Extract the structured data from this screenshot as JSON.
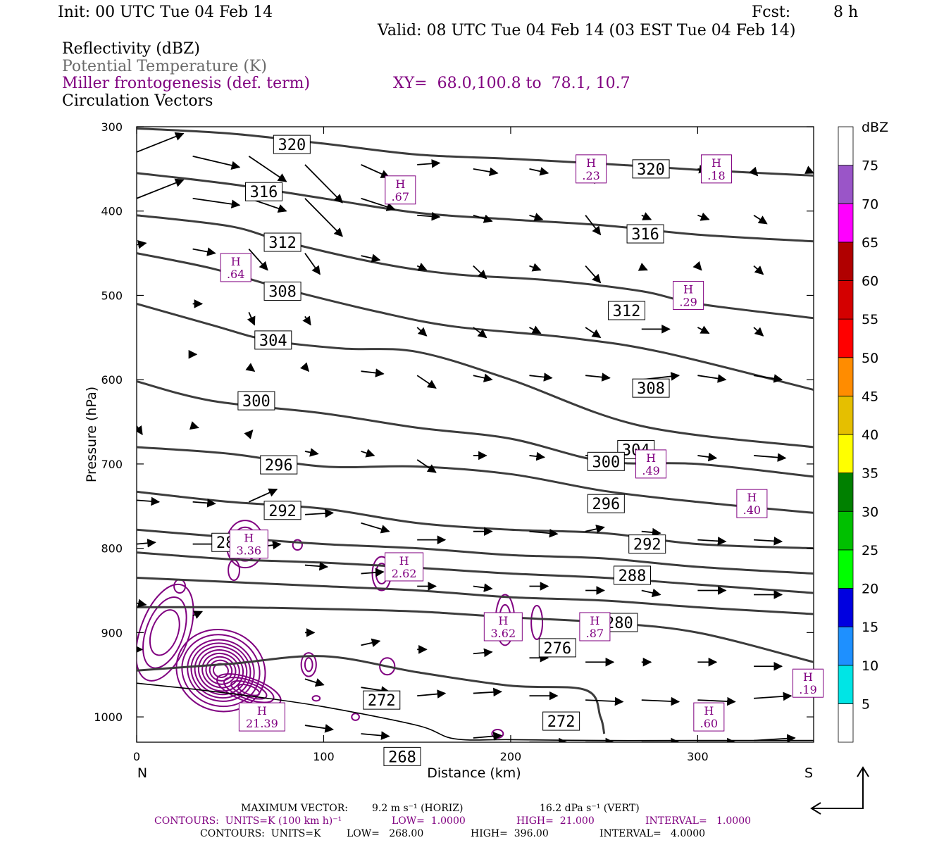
{
  "header": {
    "init": "Init: 00 UTC Tue 04 Feb 14",
    "fcst_label": "Fcst:",
    "fcst_value": "8 h",
    "valid": "Valid: 08 UTC Tue 04 Feb 14 (03 EST Tue 04 Feb 14)",
    "field1": "Reflectivity (dBZ)",
    "field2": "Potential Temperature (K)",
    "field3": "Miller frontogenesis (def. term)",
    "xy": "XY=  68.0,100.8 to  78.1, 10.7",
    "field4": "Circulation Vectors"
  },
  "footer": {
    "max_vector_label": "MAXIMUM VECTOR:",
    "max_horiz": "9.2 m s⁻¹ (HORIZ)",
    "max_vert": "16.2 dPa s⁻¹ (VERT)",
    "contours1_units": "CONTOURS:  UNITS=K (100 km h)⁻¹",
    "contours1_low": "LOW=  1.0000",
    "contours1_high": "HIGH=  21.000",
    "contours1_interval": "INTERVAL=   1.0000",
    "contours2_units": "CONTOURS:  UNITS=K",
    "contours2_low": "LOW=   268.00",
    "contours2_high": "HIGH=  396.00",
    "contours2_interval": "INTERVAL=   4.0000"
  },
  "colors": {
    "theta": "#3c3c3c",
    "frontogenesis": "#800080",
    "vector": "#000000"
  },
  "chart_data": {
    "type": "cross-section",
    "xlabel": "Distance (km)",
    "ylabel": "Pressure (hPa)",
    "xlim": [
      0,
      362
    ],
    "ylim": [
      300,
      1030
    ],
    "x_ticks": [
      0,
      100,
      200,
      300
    ],
    "y_ticks": [
      300,
      400,
      500,
      600,
      700,
      800,
      900,
      1000
    ],
    "left_end_label": "N",
    "right_end_label": "S",
    "colorbar": {
      "title": "dBZ",
      "levels": [
        5,
        10,
        15,
        20,
        25,
        30,
        35,
        40,
        45,
        50,
        55,
        60,
        65,
        70,
        75
      ],
      "colors": [
        "#ffffff",
        "#00e5e5",
        "#1e90ff",
        "#0000e0",
        "#00ff00",
        "#00c000",
        "#008000",
        "#ffff00",
        "#e5bf00",
        "#ff8c00",
        "#ff0000",
        "#d40000",
        "#b00000",
        "#ff00ff",
        "#9a55c8",
        "#ffffff"
      ]
    },
    "theta_contours": [
      {
        "value": 320,
        "label": "320",
        "pts": [
          [
            0,
            302
          ],
          [
            50,
            308
          ],
          [
            100,
            320
          ],
          [
            150,
            333
          ],
          [
            200,
            338
          ],
          [
            250,
            344
          ],
          [
            300,
            351
          ],
          [
            362,
            358
          ]
        ]
      },
      {
        "value": 316,
        "label": "316",
        "pts": [
          [
            0,
            355
          ],
          [
            50,
            368
          ],
          [
            100,
            385
          ],
          [
            150,
            402
          ],
          [
            200,
            410
          ],
          [
            250,
            417
          ],
          [
            300,
            428
          ],
          [
            362,
            436
          ]
        ]
      },
      {
        "value": 312,
        "label": "312",
        "pts": [
          [
            0,
            405
          ],
          [
            50,
            418
          ],
          [
            80,
            437
          ],
          [
            130,
            462
          ],
          [
            170,
            475
          ],
          [
            220,
            482
          ],
          [
            270,
            495
          ],
          [
            300,
            510
          ],
          [
            362,
            527
          ]
        ]
      },
      {
        "value": 308,
        "label": "308",
        "pts": [
          [
            0,
            450
          ],
          [
            40,
            468
          ],
          [
            80,
            493
          ],
          [
            130,
            520
          ],
          [
            170,
            537
          ],
          [
            230,
            550
          ],
          [
            280,
            567
          ],
          [
            362,
            612
          ]
        ]
      },
      {
        "value": 304,
        "label": "304",
        "pts": [
          [
            0,
            510
          ],
          [
            40,
            535
          ],
          [
            70,
            553
          ],
          [
            110,
            563
          ],
          [
            150,
            567
          ],
          [
            200,
            600
          ],
          [
            270,
            655
          ],
          [
            362,
            680
          ]
        ]
      },
      {
        "value": 300,
        "label": "300",
        "pts": [
          [
            0,
            602
          ],
          [
            40,
            625
          ],
          [
            100,
            640
          ],
          [
            150,
            657
          ],
          [
            200,
            670
          ],
          [
            250,
            697
          ],
          [
            300,
            700
          ],
          [
            362,
            715
          ]
        ]
      },
      {
        "value": 296,
        "label": "296",
        "pts": [
          [
            0,
            680
          ],
          [
            50,
            688
          ],
          [
            100,
            703
          ],
          [
            150,
            703
          ],
          [
            200,
            712
          ],
          [
            250,
            732
          ],
          [
            300,
            745
          ],
          [
            362,
            758
          ]
        ]
      },
      {
        "value": 292,
        "label": "292",
        "pts": [
          [
            0,
            733
          ],
          [
            50,
            745
          ],
          [
            100,
            753
          ],
          [
            150,
            770
          ],
          [
            200,
            778
          ],
          [
            250,
            782
          ],
          [
            300,
            795
          ],
          [
            362,
            800
          ]
        ]
      },
      {
        "value": 288,
        "label": "288",
        "pts": [
          [
            0,
            778
          ],
          [
            50,
            787
          ],
          [
            100,
            795
          ],
          [
            150,
            800
          ],
          [
            200,
            808
          ],
          [
            250,
            812
          ],
          [
            300,
            822
          ],
          [
            362,
            830
          ]
        ]
      },
      {
        "value": 284,
        "label": "",
        "pts": [
          [
            0,
            805
          ],
          [
            50,
            813
          ],
          [
            100,
            817
          ],
          [
            150,
            823
          ],
          [
            200,
            830
          ],
          [
            250,
            835
          ],
          [
            300,
            843
          ],
          [
            362,
            853
          ]
        ]
      },
      {
        "value": 280,
        "label": "280",
        "pts": [
          [
            0,
            835
          ],
          [
            50,
            840
          ],
          [
            100,
            845
          ],
          [
            150,
            850
          ],
          [
            200,
            858
          ],
          [
            250,
            862
          ],
          [
            300,
            870
          ],
          [
            362,
            878
          ]
        ]
      },
      {
        "value": 276,
        "label": "276",
        "pts": [
          [
            0,
            870
          ],
          [
            50,
            870
          ],
          [
            100,
            872
          ],
          [
            150,
            875
          ],
          [
            200,
            882
          ],
          [
            250,
            888
          ],
          [
            300,
            900
          ],
          [
            362,
            935
          ]
        ]
      },
      {
        "value": 272,
        "label": "272",
        "pts": [
          [
            0,
            945
          ],
          [
            50,
            937
          ],
          [
            100,
            928
          ],
          [
            150,
            947
          ],
          [
            200,
            963
          ],
          [
            240,
            968
          ],
          [
            248,
            1000
          ],
          [
            250,
            1020
          ]
        ]
      }
    ],
    "theta_labels": [
      {
        "text": "320",
        "x": 83,
        "p": 321
      },
      {
        "text": "320",
        "x": 275,
        "p": 350
      },
      {
        "text": "316",
        "x": 68,
        "p": 377
      },
      {
        "text": "316",
        "x": 272,
        "p": 427
      },
      {
        "text": "312",
        "x": 78,
        "p": 437
      },
      {
        "text": "312",
        "x": 262,
        "p": 518
      },
      {
        "text": "308",
        "x": 78,
        "p": 495
      },
      {
        "text": "308",
        "x": 275,
        "p": 610
      },
      {
        "text": "304",
        "x": 73,
        "p": 553
      },
      {
        "text": "304",
        "x": 267,
        "p": 683
      },
      {
        "text": "300",
        "x": 64,
        "p": 625
      },
      {
        "text": "300",
        "x": 251,
        "p": 697
      },
      {
        "text": "296",
        "x": 76,
        "p": 701
      },
      {
        "text": "296",
        "x": 251,
        "p": 747
      },
      {
        "text": "292",
        "x": 78,
        "p": 755
      },
      {
        "text": "292",
        "x": 273,
        "p": 795
      },
      {
        "text": "288",
        "x": 50,
        "p": 793
      },
      {
        "text": "288",
        "x": 265,
        "p": 832
      },
      {
        "text": "280",
        "x": 258,
        "p": 888
      },
      {
        "text": "276",
        "x": 225,
        "p": 918
      },
      {
        "text": "272",
        "x": 131,
        "p": 980
      },
      {
        "text": "272",
        "x": 227,
        "p": 1005
      },
      {
        "text": "268",
        "x": 142,
        "p": 1047
      }
    ],
    "frontogenesis_maxima": [
      {
        "label": "H",
        "value": ".67",
        "x": 141,
        "p": 375
      },
      {
        "label": "H",
        "value": ".23",
        "x": 243,
        "p": 350
      },
      {
        "label": "H",
        "value": ".18",
        "x": 310,
        "p": 350
      },
      {
        "label": "H",
        "value": ".64",
        "x": 53,
        "p": 467
      },
      {
        "label": "H",
        "value": ".29",
        "x": 295,
        "p": 500
      },
      {
        "label": "H",
        "value": ".49",
        "x": 275,
        "p": 700
      },
      {
        "label": "H",
        "value": ".40",
        "x": 329,
        "p": 747
      },
      {
        "label": "H",
        "value": "3.36",
        "x": 60,
        "p": 795
      },
      {
        "label": "H",
        "value": "2.62",
        "x": 143,
        "p": 822
      },
      {
        "label": "H",
        "value": "3.62",
        "x": 196,
        "p": 893
      },
      {
        "label": "H",
        "value": ".87",
        "x": 245,
        "p": 893
      },
      {
        "label": "H",
        "value": ".19",
        "x": 359,
        "p": 960
      },
      {
        "label": "H",
        "value": ".60",
        "x": 306,
        "p": 1000
      },
      {
        "label": "H",
        "value": "21.39",
        "x": 67,
        "p": 1000
      }
    ]
  }
}
